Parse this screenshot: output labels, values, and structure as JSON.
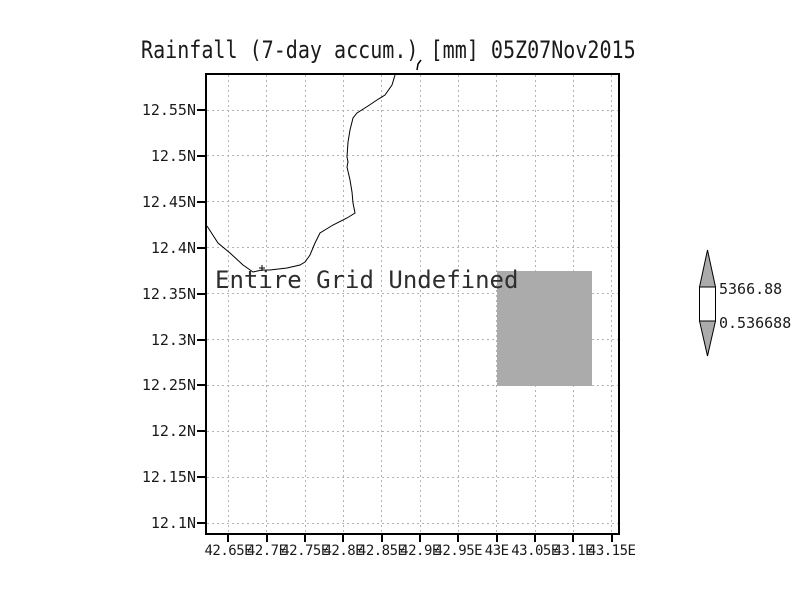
{
  "title": "Rainfall (7-day accum.) [mm] 05Z07Nov2015",
  "annotation": "Entire Grid Undefined",
  "y_axis": {
    "ticks": [
      "12.55N",
      "12.5N",
      "12.45N",
      "12.4N",
      "12.35N",
      "12.3N",
      "12.25N",
      "12.2N",
      "12.15N",
      "12.1N"
    ]
  },
  "x_axis": {
    "ticks": [
      "42.65E",
      "42.7E",
      "42.75E",
      "42.8E",
      "42.85E",
      "42.9E",
      "42.95E",
      "43E",
      "43.05E",
      "43.1E",
      "43.15E"
    ]
  },
  "colorbar": {
    "top_label": "5366.88",
    "bottom_label": "0.536688"
  },
  "colors": {
    "grid_line": "#b3b3b3",
    "undefined_fill": "#ababab",
    "coastline": "#000000",
    "text": "#1a1a1a"
  },
  "chart_data": {
    "type": "map",
    "title": "Rainfall (7-day accum.) [mm] 05Z07Nov2015",
    "status_annotation": "Entire Grid Undefined",
    "x_tick_labels": [
      "42.65E",
      "42.7E",
      "42.75E",
      "42.8E",
      "42.85E",
      "42.9E",
      "42.95E",
      "43E",
      "43.05E",
      "43.1E",
      "43.15E"
    ],
    "y_tick_labels": [
      "12.55N",
      "12.5N",
      "12.45N",
      "12.4N",
      "12.35N",
      "12.3N",
      "12.25N",
      "12.2N",
      "12.15N",
      "12.1N"
    ],
    "grid": "dotted",
    "legend_position": "right",
    "colorbar_labels": [
      "5366.88",
      "0.536688"
    ],
    "colorbar_values": [
      5366.88,
      0.536688
    ],
    "shaded_undefined_region": {
      "lon_min": 43.0,
      "lon_max": 43.125,
      "lat_min": 12.25,
      "lat_max": 12.375
    },
    "coastline_shown": true
  }
}
